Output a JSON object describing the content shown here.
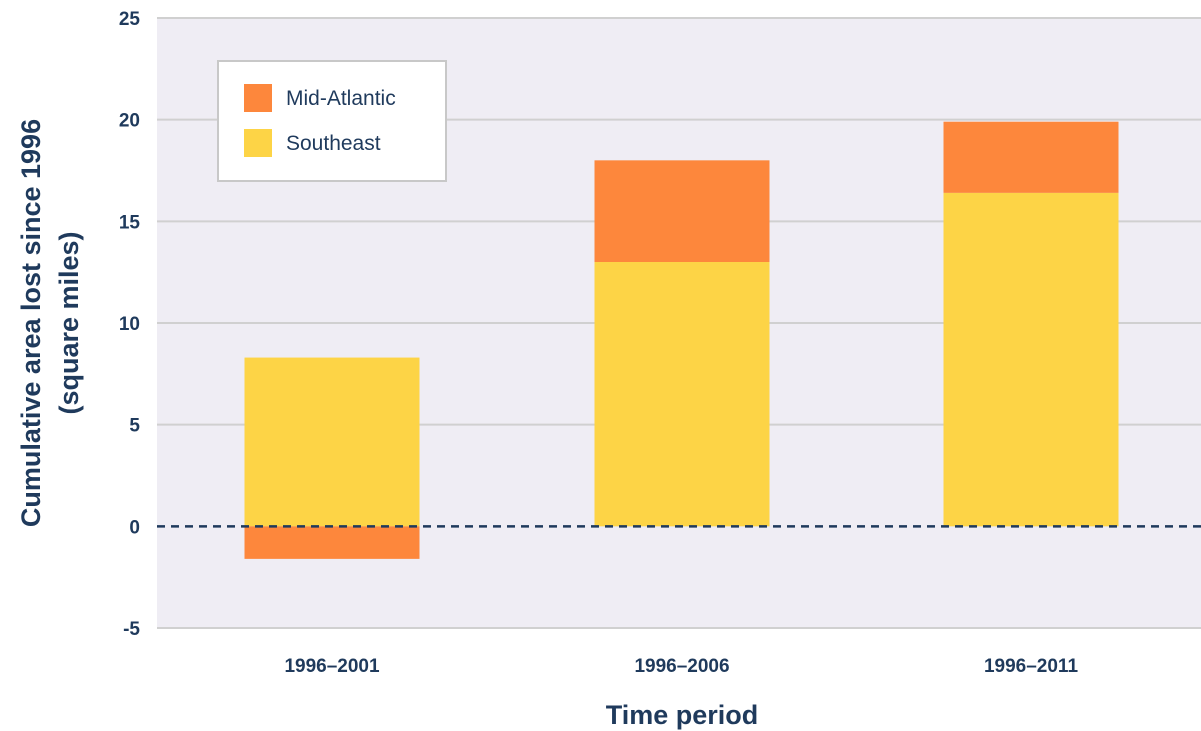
{
  "chart_data": {
    "type": "bar",
    "stacked": true,
    "title": "",
    "xlabel": "Time period",
    "ylabel_lines": [
      "Cumulative area lost since 1996",
      "(square miles)"
    ],
    "categories": [
      "1996–2001",
      "1996–2006",
      "1996–2011"
    ],
    "series": [
      {
        "name": "Southeast",
        "color": "#fdd446",
        "values": [
          8.3,
          13.0,
          16.4
        ]
      },
      {
        "name": "Mid-Atlantic",
        "color": "#fd873c",
        "values": [
          -1.6,
          5.0,
          3.5
        ]
      }
    ],
    "ylim": [
      -5,
      25
    ],
    "yticks": [
      "-5",
      "0",
      "5",
      "10",
      "15",
      "20",
      "25"
    ],
    "grid": true,
    "zero_line": "dashed",
    "legend_position": "top-left",
    "legend_order": [
      "Mid-Atlantic",
      "Southeast"
    ],
    "colors": {
      "plot_background": "#efedf4",
      "gridline": "#d0d0d0",
      "text": "#1f3a5c",
      "zero_line": "#1f3a5c"
    }
  }
}
